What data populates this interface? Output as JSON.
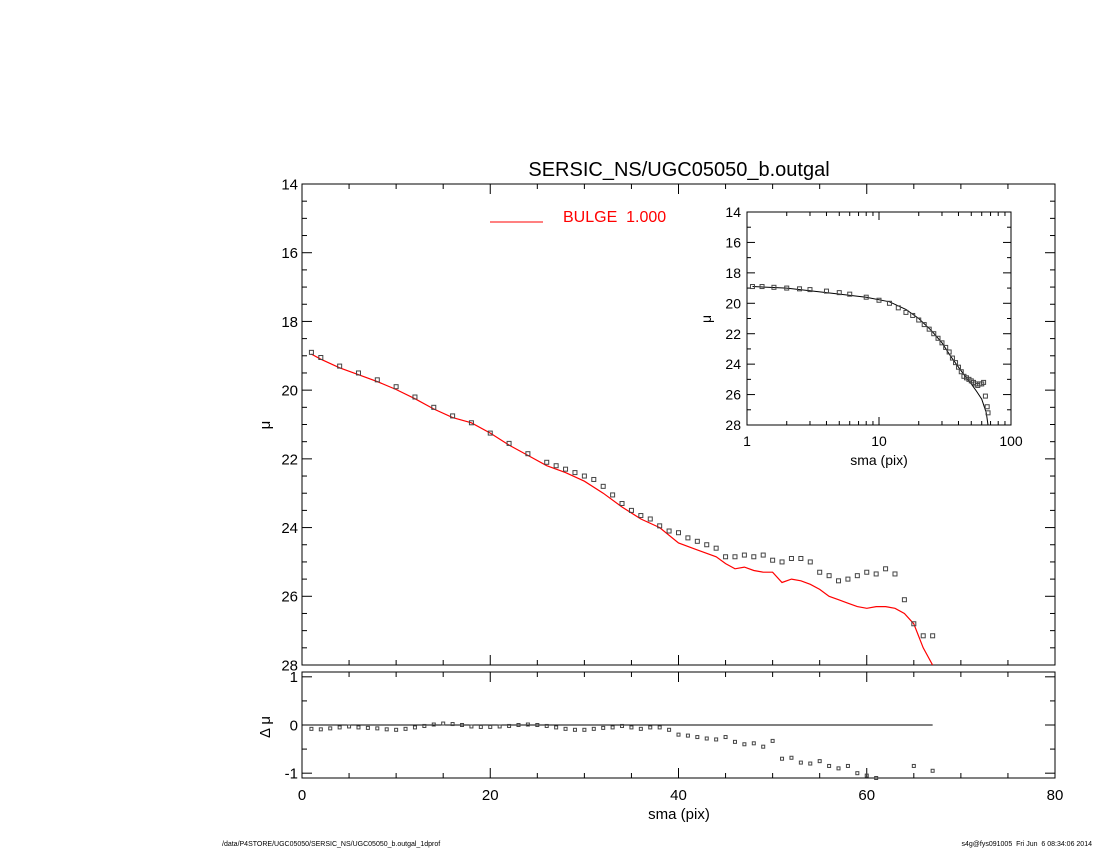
{
  "chart_data": [
    {
      "panel": "main",
      "type": "line",
      "title": "SERSIC_NS/UGC05050_b.outgal",
      "xlabel": "",
      "ylabel": "μ",
      "xlim": [
        0,
        80
      ],
      "ylim": [
        28,
        14
      ],
      "y_inverted": true,
      "yticks": [
        "14",
        "16",
        "18",
        "20",
        "22",
        "24",
        "26",
        "28"
      ],
      "grid": false,
      "legend": {
        "position": "top-center",
        "label": "BULGE  1.000",
        "color": "#ff0000"
      },
      "series": [
        {
          "name": "BULGE  1.000",
          "kind": "line",
          "color": "#ff0000",
          "x": [
            1,
            2,
            4,
            6,
            8,
            10,
            12,
            14,
            16,
            18,
            20,
            22,
            24,
            26,
            28,
            30,
            32,
            34,
            36,
            38,
            40,
            42,
            44,
            45,
            46,
            47,
            48,
            49,
            50,
            51,
            52,
            53,
            54,
            55,
            56,
            57,
            58,
            59,
            60,
            61,
            62,
            63,
            64,
            65,
            66,
            67
          ],
          "y": [
            18.95,
            19.1,
            19.35,
            19.55,
            19.75,
            19.98,
            20.25,
            20.55,
            20.8,
            20.95,
            21.25,
            21.6,
            21.9,
            22.2,
            22.4,
            22.65,
            23.0,
            23.4,
            23.75,
            24.0,
            24.45,
            24.65,
            24.85,
            25.05,
            25.2,
            25.15,
            25.25,
            25.3,
            25.3,
            25.6,
            25.5,
            25.55,
            25.65,
            25.8,
            26.0,
            26.1,
            26.2,
            26.3,
            26.35,
            26.3,
            26.3,
            26.35,
            26.5,
            26.8,
            27.5,
            28.0
          ]
        },
        {
          "name": "",
          "kind": "markers",
          "color": "#444444",
          "x": [
            1,
            2,
            4,
            6,
            8,
            10,
            12,
            14,
            16,
            18,
            20,
            22,
            24,
            26,
            27,
            28,
            29,
            30,
            31,
            32,
            33,
            34,
            35,
            36,
            37,
            38,
            39,
            40,
            41,
            42,
            43,
            44,
            45,
            46,
            47,
            48,
            49,
            50,
            51,
            52,
            53,
            54,
            55,
            56,
            57,
            58,
            59,
            60,
            61,
            62,
            63,
            64,
            65,
            66,
            67
          ],
          "y": [
            18.9,
            19.05,
            19.3,
            19.5,
            19.7,
            19.9,
            20.2,
            20.5,
            20.75,
            20.95,
            21.25,
            21.55,
            21.85,
            22.1,
            22.2,
            22.3,
            22.4,
            22.5,
            22.6,
            22.8,
            23.05,
            23.3,
            23.5,
            23.65,
            23.75,
            23.95,
            24.1,
            24.15,
            24.3,
            24.4,
            24.5,
            24.6,
            24.85,
            24.85,
            24.8,
            24.85,
            24.8,
            24.95,
            25.0,
            24.9,
            24.9,
            25.0,
            25.3,
            25.4,
            25.55,
            25.5,
            25.4,
            25.3,
            25.35,
            25.2,
            25.35,
            26.1,
            26.8,
            27.15,
            27.15
          ]
        }
      ]
    },
    {
      "panel": "inset",
      "type": "scatter",
      "xlabel": "sma (pix)",
      "ylabel": "μ",
      "xscale": "log",
      "xlim": [
        1,
        100
      ],
      "ylim": [
        28,
        14
      ],
      "y_inverted": true,
      "xticks": [
        "1",
        "10",
        "100"
      ],
      "yticks": [
        "14",
        "16",
        "18",
        "20",
        "22",
        "24",
        "26",
        "28"
      ],
      "series": [
        {
          "name": "",
          "kind": "line",
          "color": "#000000",
          "x": [
            1.1,
            2,
            4,
            8,
            12,
            16,
            20,
            25,
            30,
            35,
            40,
            45,
            50,
            55,
            60,
            65,
            67
          ],
          "y": [
            18.9,
            19.0,
            19.3,
            19.6,
            19.9,
            20.4,
            21.0,
            21.8,
            22.6,
            23.5,
            24.2,
            24.8,
            25.3,
            25.8,
            26.3,
            27.2,
            28.0
          ]
        },
        {
          "name": "",
          "kind": "markers",
          "color": "#444444",
          "x": [
            1.1,
            1.3,
            1.6,
            2,
            2.5,
            3,
            4,
            5,
            6,
            8,
            10,
            12,
            14,
            16,
            18,
            20,
            22,
            24,
            26,
            28,
            30,
            32,
            34,
            36,
            38,
            40,
            42,
            44,
            46,
            48,
            50,
            52,
            54,
            56,
            58,
            60,
            62,
            64,
            66,
            67
          ],
          "y": [
            18.9,
            18.9,
            18.95,
            19.0,
            19.05,
            19.1,
            19.2,
            19.3,
            19.4,
            19.6,
            19.8,
            20.0,
            20.3,
            20.6,
            20.8,
            21.1,
            21.4,
            21.7,
            22.0,
            22.3,
            22.6,
            22.9,
            23.2,
            23.6,
            23.9,
            24.2,
            24.5,
            24.8,
            24.9,
            25.0,
            25.1,
            25.2,
            25.3,
            25.4,
            25.3,
            25.3,
            25.2,
            26.1,
            26.8,
            27.2
          ]
        }
      ]
    },
    {
      "panel": "residual",
      "type": "scatter",
      "xlabel": "sma (pix)",
      "ylabel": "Δ μ",
      "xlim": [
        0,
        80
      ],
      "ylim": [
        -1.1,
        1.1
      ],
      "xticks": [
        "0",
        "20",
        "40",
        "60",
        "80"
      ],
      "yticks": [
        "-1",
        "0",
        "1"
      ],
      "series": [
        {
          "name": "",
          "kind": "markers",
          "color": "#444444",
          "x": [
            1,
            2,
            3,
            4,
            5,
            6,
            7,
            8,
            9,
            10,
            11,
            12,
            13,
            14,
            15,
            16,
            17,
            18,
            19,
            20,
            21,
            22,
            23,
            24,
            25,
            26,
            27,
            28,
            29,
            30,
            31,
            32,
            33,
            34,
            35,
            36,
            37,
            38,
            39,
            40,
            41,
            42,
            43,
            44,
            45,
            46,
            47,
            48,
            49,
            50,
            51,
            52,
            53,
            54,
            55,
            56,
            57,
            58,
            59,
            60,
            61,
            65,
            67
          ],
          "y": [
            -0.08,
            -0.09,
            -0.07,
            -0.05,
            -0.03,
            -0.05,
            -0.06,
            -0.07,
            -0.09,
            -0.1,
            -0.08,
            -0.05,
            -0.02,
            0.01,
            0.03,
            0.02,
            0.0,
            -0.03,
            -0.04,
            -0.04,
            -0.03,
            -0.02,
            0.0,
            0.01,
            0.0,
            -0.02,
            -0.05,
            -0.08,
            -0.1,
            -0.1,
            -0.08,
            -0.06,
            -0.05,
            -0.02,
            -0.05,
            -0.08,
            -0.05,
            -0.05,
            -0.1,
            -0.2,
            -0.22,
            -0.25,
            -0.28,
            -0.3,
            -0.25,
            -0.35,
            -0.4,
            -0.38,
            -0.45,
            -0.33,
            -0.7,
            -0.68,
            -0.78,
            -0.8,
            -0.75,
            -0.85,
            -0.9,
            -0.85,
            -1.0,
            -1.05,
            -1.1,
            -0.85,
            -0.95
          ]
        }
      ]
    }
  ],
  "footer": {
    "left": "/data/P4STORE/UGC05050/SERSIC_NS/UGC05050_b.outgal_1dprof",
    "right": "s4g@fys091005  Fri Jun  6 08:34:06 2014"
  }
}
